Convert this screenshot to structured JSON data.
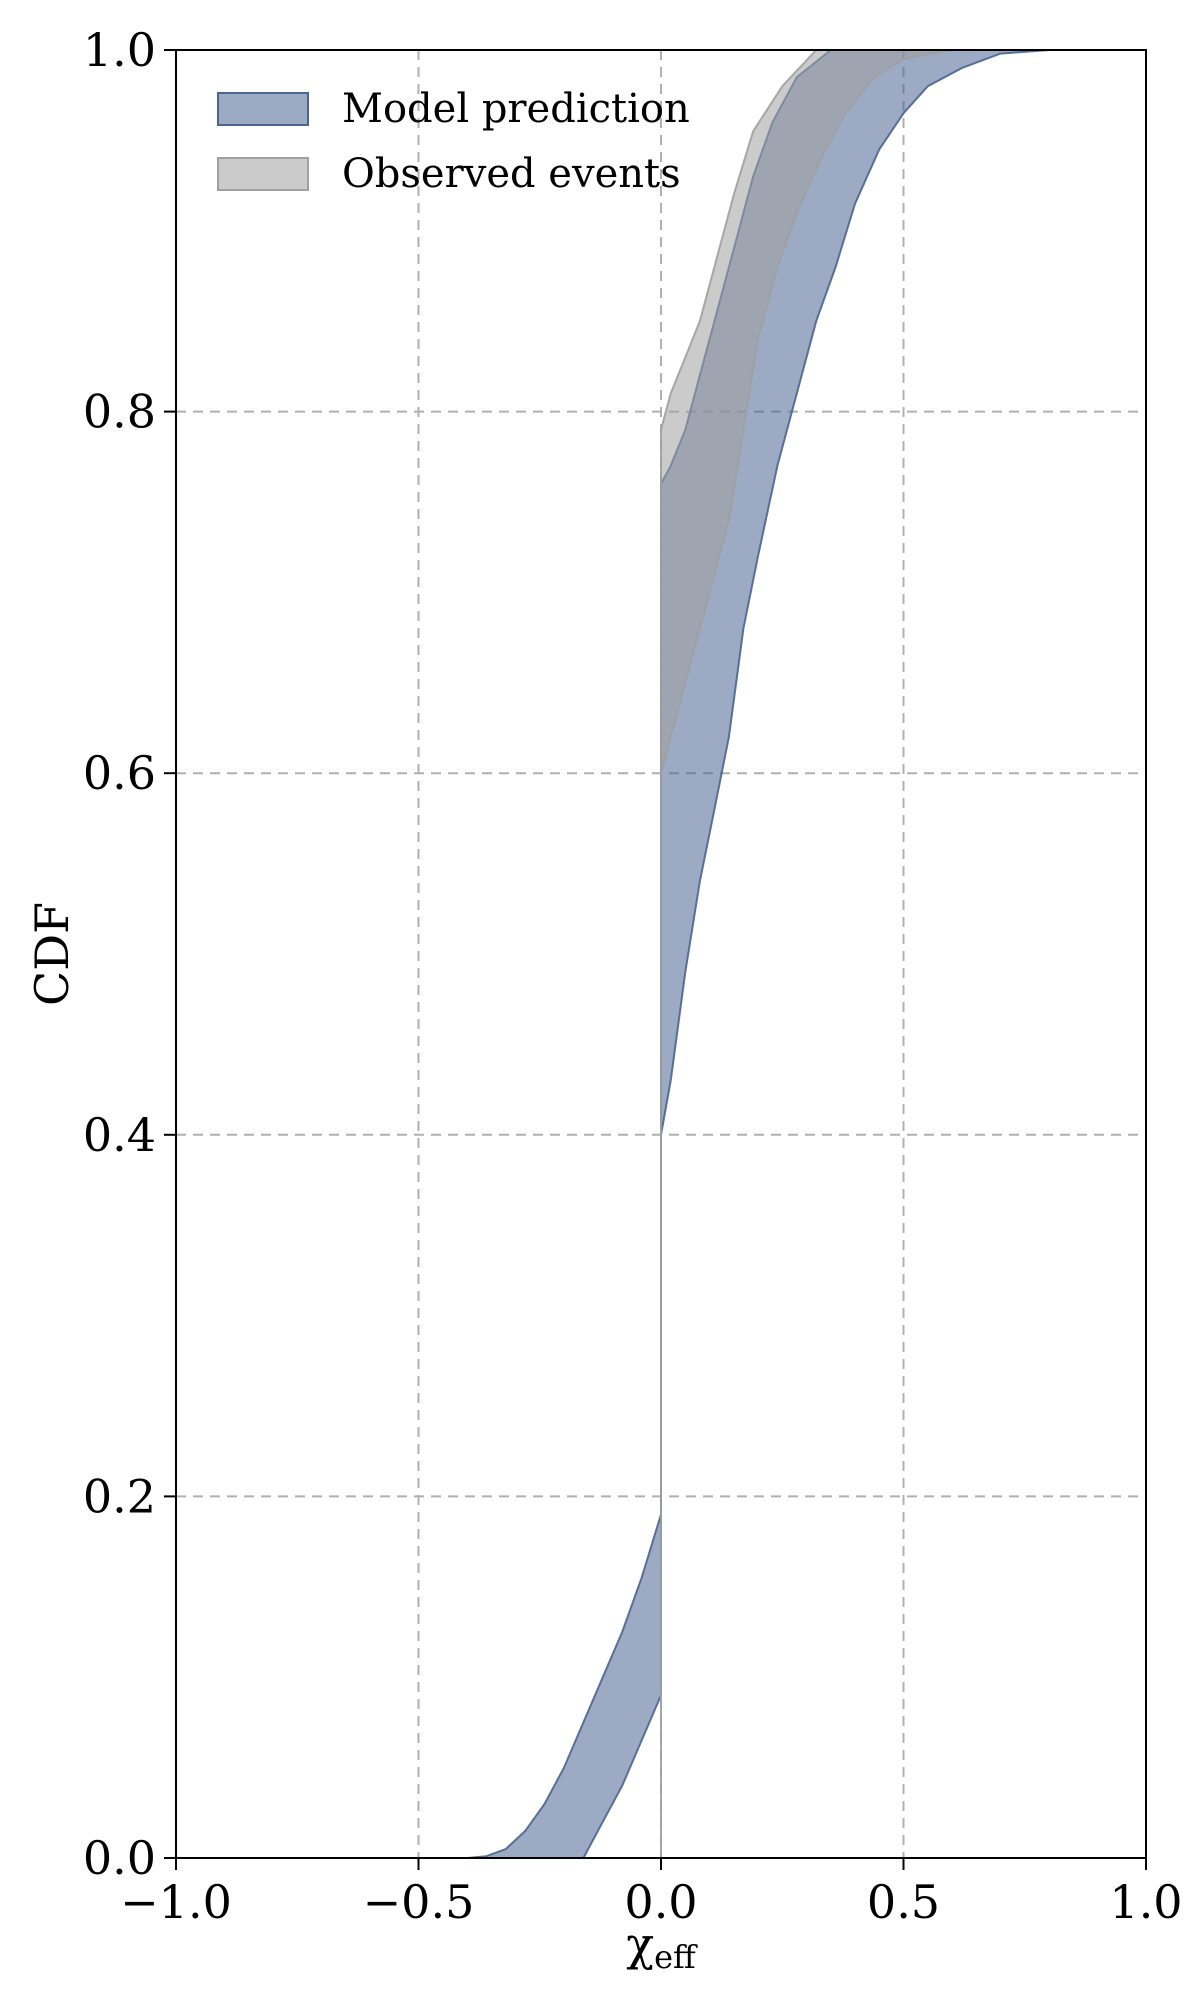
{
  "chart_data": {
    "type": "area",
    "xlabel": "χ",
    "xlabel_sub": "eff",
    "ylabel": "CDF",
    "xlim": [
      -1.0,
      1.0
    ],
    "ylim": [
      0.0,
      1.0
    ],
    "grid": true,
    "legend_position": "top-left",
    "x_ticks": [
      -1.0,
      -0.5,
      0.0,
      0.5,
      1.0
    ],
    "x_tick_labels": [
      "−1.0",
      "−0.5",
      "0.0",
      "0.5",
      "1.0"
    ],
    "y_ticks": [
      0.0,
      0.2,
      0.4,
      0.6,
      0.8,
      1.0
    ],
    "y_tick_labels": [
      "0.0",
      "0.2",
      "0.4",
      "0.6",
      "0.8",
      "1.0"
    ],
    "series": [
      {
        "name": "Model prediction",
        "color": "#4a6591",
        "fill_opacity": 0.55,
        "upper": [
          [
            -0.4,
            0.0
          ],
          [
            -0.36,
            0.001
          ],
          [
            -0.32,
            0.005
          ],
          [
            -0.28,
            0.015
          ],
          [
            -0.24,
            0.03
          ],
          [
            -0.2,
            0.05
          ],
          [
            -0.16,
            0.075
          ],
          [
            -0.12,
            0.1
          ],
          [
            -0.08,
            0.125
          ],
          [
            -0.04,
            0.155
          ],
          [
            0.0,
            0.19
          ],
          [
            0.0,
            0.76
          ],
          [
            0.02,
            0.77
          ],
          [
            0.05,
            0.79
          ],
          [
            0.08,
            0.82
          ],
          [
            0.11,
            0.85
          ],
          [
            0.15,
            0.89
          ],
          [
            0.19,
            0.93
          ],
          [
            0.23,
            0.96
          ],
          [
            0.28,
            0.985
          ],
          [
            0.35,
            1.0
          ],
          [
            0.5,
            1.0
          ],
          [
            0.8,
            1.0
          ]
        ],
        "lower": [
          [
            -0.4,
            0.0
          ],
          [
            -0.16,
            0.0
          ],
          [
            -0.12,
            0.02
          ],
          [
            -0.08,
            0.04
          ],
          [
            -0.04,
            0.065
          ],
          [
            0.0,
            0.09
          ],
          [
            0.0,
            0.4
          ],
          [
            0.02,
            0.43
          ],
          [
            0.05,
            0.49
          ],
          [
            0.08,
            0.54
          ],
          [
            0.11,
            0.58
          ],
          [
            0.14,
            0.62
          ],
          [
            0.17,
            0.68
          ],
          [
            0.2,
            0.72
          ],
          [
            0.24,
            0.77
          ],
          [
            0.28,
            0.81
          ],
          [
            0.32,
            0.85
          ],
          [
            0.36,
            0.88
          ],
          [
            0.4,
            0.915
          ],
          [
            0.45,
            0.945
          ],
          [
            0.5,
            0.965
          ],
          [
            0.55,
            0.98
          ],
          [
            0.62,
            0.99
          ],
          [
            0.7,
            0.998
          ],
          [
            0.8,
            1.0
          ]
        ]
      },
      {
        "name": "Observed events",
        "color": "#a0a0a0",
        "fill_opacity": 0.55,
        "upper": [
          [
            0.0,
            0.0
          ],
          [
            0.0,
            0.79
          ],
          [
            0.02,
            0.81
          ],
          [
            0.05,
            0.83
          ],
          [
            0.08,
            0.85
          ],
          [
            0.11,
            0.88
          ],
          [
            0.15,
            0.92
          ],
          [
            0.19,
            0.955
          ],
          [
            0.25,
            0.98
          ],
          [
            0.32,
            1.0
          ],
          [
            0.8,
            1.0
          ]
        ],
        "lower": [
          [
            0.0,
            0.0
          ],
          [
            0.0,
            0.6
          ],
          [
            0.04,
            0.64
          ],
          [
            0.08,
            0.68
          ],
          [
            0.11,
            0.71
          ],
          [
            0.14,
            0.74
          ],
          [
            0.17,
            0.79
          ],
          [
            0.2,
            0.84
          ],
          [
            0.24,
            0.88
          ],
          [
            0.28,
            0.91
          ],
          [
            0.33,
            0.94
          ],
          [
            0.38,
            0.965
          ],
          [
            0.44,
            0.985
          ],
          [
            0.5,
            0.995
          ],
          [
            0.6,
            1.0
          ],
          [
            0.8,
            1.0
          ]
        ]
      }
    ]
  }
}
